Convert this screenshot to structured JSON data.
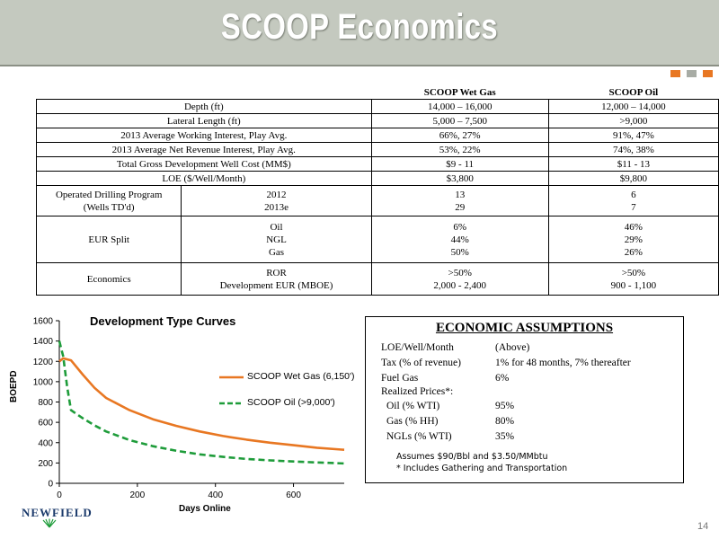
{
  "title": "SCOOP Economics",
  "table": {
    "col1": "SCOOP Wet Gas",
    "col2": "SCOOP Oil",
    "rows": [
      {
        "label": "Depth (ft)",
        "wet": "14,000 – 16,000",
        "oil": "12,000 – 14,000"
      },
      {
        "label": "Lateral Length (ft)",
        "wet": "5,000 – 7,500",
        "oil": ">9,000"
      },
      {
        "label": "2013 Average Working Interest, Play Avg.",
        "wet": "66%, 27%",
        "oil": "91%, 47%"
      },
      {
        "label": "2013 Average Net Revenue Interest, Play Avg.",
        "wet": "53%, 22%",
        "oil": "74%, 38%"
      },
      {
        "label": "Total Gross Development Well Cost (MM$)",
        "wet": "$9 - 11",
        "oil": "$11 - 13"
      },
      {
        "label": "LOE ($/Well/Month)",
        "wet": "$3,800",
        "oil": "$9,800"
      }
    ],
    "drilling": {
      "label_l1": "Operated Drilling Program",
      "label_l2": "(Wells TD'd)",
      "sub": [
        "2012",
        "2013e"
      ],
      "wet": [
        "13",
        "29"
      ],
      "oil": [
        "6",
        "7"
      ]
    },
    "eur": {
      "label": "EUR Split",
      "sub": [
        "Oil",
        "NGL",
        "Gas"
      ],
      "wet": [
        "6%",
        "44%",
        "50%"
      ],
      "oil": [
        "46%",
        "29%",
        "26%"
      ]
    },
    "economics": {
      "label": "Economics",
      "sub": [
        "ROR",
        "Development EUR (MBOE)"
      ],
      "wet": [
        ">50%",
        "2,000 - 2,400"
      ],
      "oil": [
        ">50%",
        "900 - 1,100"
      ]
    }
  },
  "chart_data": {
    "type": "line",
    "title": "Development Type Curves",
    "xlabel": "Days Online",
    "ylabel": "BOEPD",
    "xlim": [
      0,
      730
    ],
    "ylim": [
      0,
      1600
    ],
    "xticks": [
      0,
      200,
      400,
      600
    ],
    "yticks": [
      0,
      200,
      400,
      600,
      800,
      1000,
      1200,
      1400,
      1600
    ],
    "legend_position": "right",
    "series": [
      {
        "name": "SCOOP Wet Gas (6,150')",
        "color": "#e87722",
        "style": "solid",
        "x": [
          0,
          10,
          30,
          60,
          90,
          120,
          180,
          240,
          300,
          360,
          420,
          480,
          540,
          600,
          660,
          730
        ],
        "y": [
          1200,
          1230,
          1210,
          1070,
          940,
          840,
          720,
          630,
          565,
          510,
          465,
          430,
          400,
          375,
          350,
          330
        ]
      },
      {
        "name": "SCOOP Oil (>9,000')",
        "color": "#1e9c3a",
        "style": "dashed",
        "x": [
          0,
          10,
          20,
          30,
          60,
          90,
          120,
          180,
          240,
          300,
          360,
          420,
          480,
          540,
          600,
          660,
          730
        ],
        "y": [
          1400,
          1250,
          950,
          720,
          640,
          570,
          510,
          425,
          365,
          320,
          285,
          260,
          240,
          225,
          215,
          205,
          195
        ]
      }
    ]
  },
  "assumptions": {
    "title": "ECONOMIC ASSUMPTIONS",
    "rows": [
      {
        "label": "LOE/Well/Month",
        "value": "(Above)"
      },
      {
        "label": "Tax (% of revenue)",
        "value": "1% for 48 months, 7% thereafter"
      },
      {
        "label": "Fuel Gas",
        "value": "6%"
      },
      {
        "label": "Realized Prices*:",
        "value": ""
      },
      {
        "label": "Oil (% WTI)",
        "value": "95%"
      },
      {
        "label": "Gas (% HH)",
        "value": "80%"
      },
      {
        "label": "NGLs (% WTI)",
        "value": "35%"
      }
    ],
    "note1": "Assumes $90/Bbl and $3.50/MMbtu",
    "note2": "* Includes Gathering and Transportation"
  },
  "logo_text": "NEWFIELD",
  "page_number": "14",
  "colors": {
    "banner": "#c4c9bf",
    "accent": "#e87722",
    "logo": "#1b3a6b"
  }
}
